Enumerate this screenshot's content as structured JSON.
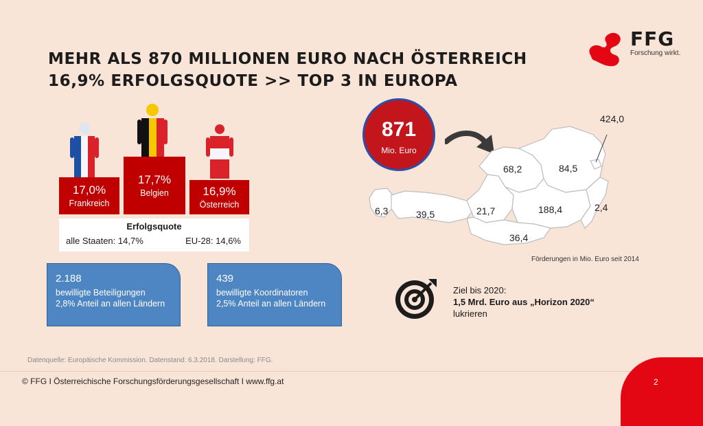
{
  "title": {
    "line1": "MEHR ALS 870 MILLIONEN EURO NACH ÖSTERREICH",
    "line2": "16,9% ERFOLGSQUOTE >> TOP 3 IN EUROPA"
  },
  "logo": {
    "name": "FFG",
    "tagline": "Forschung wirkt."
  },
  "podium": [
    {
      "pct": "17,0%",
      "country": "Frankreich",
      "flag": [
        "#1d4fa3",
        "#ffffff",
        "#d9222a"
      ]
    },
    {
      "pct": "17,7%",
      "country": "Belgien",
      "flag": [
        "#111111",
        "#f5c800",
        "#d9222a"
      ]
    },
    {
      "pct": "16,9%",
      "country": "Österreich",
      "flag": [
        "#d9222a",
        "#ffffff",
        "#d9222a"
      ]
    }
  ],
  "quota": {
    "heading": "Erfolgsquote",
    "all_states": "alle Staaten: 14,7%",
    "eu28": "EU-28: 14,6%"
  },
  "stats": [
    {
      "value": "2.188",
      "line1": "bewilligte Beteiligungen",
      "line2": "2,8% Anteil an allen Ländern"
    },
    {
      "value": "439",
      "line1": "bewilligte Koordinatoren",
      "line2": "2,5% Anteil an allen Ländern"
    }
  ],
  "total": {
    "value": "871",
    "unit": "Mio. Euro"
  },
  "map": {
    "regions": [
      {
        "name": "Vorarlberg",
        "value": "6,3"
      },
      {
        "name": "Tirol",
        "value": "39,5"
      },
      {
        "name": "Salzburg",
        "value": "21,7"
      },
      {
        "name": "Oberösterreich",
        "value": "68,2"
      },
      {
        "name": "Niederösterreich",
        "value": "84,5"
      },
      {
        "name": "Wien",
        "value": "424,0"
      },
      {
        "name": "Steiermark",
        "value": "188,4"
      },
      {
        "name": "Burgenland",
        "value": "2,4"
      },
      {
        "name": "Kärnten",
        "value": "36,4"
      }
    ],
    "note": "Förderungen in Mio. Euro seit 2014"
  },
  "goal": {
    "line1": "Ziel bis 2020:",
    "line2": "1,5 Mrd. Euro aus „Horizon 2020“",
    "line3": "lukrieren"
  },
  "source": "Datenquelle: Europäische Kommission. Datenstand: 6.3.2018. Darstellung: FFG.",
  "footer": "© FFG I Österreichische Forschungsförderungsgesellschaft I www.ffg.at",
  "page_number": "2",
  "colors": {
    "background": "#f9e4d8",
    "brand_red": "#e30613",
    "podium_red": "#c00000",
    "stat_blue": "#4e86c4",
    "circle_border": "#2a4fa8"
  }
}
